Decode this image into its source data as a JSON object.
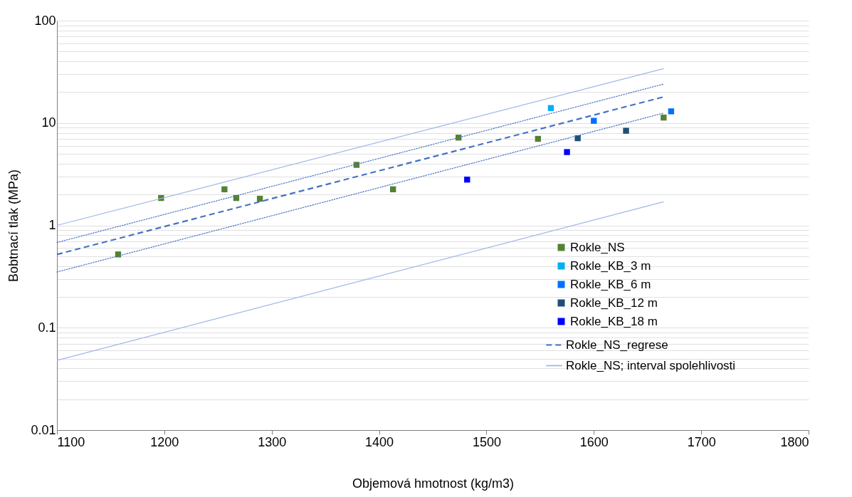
{
  "chart_data": {
    "type": "scatter",
    "xlabel": "Objemová hmotnost (kg/m3)",
    "ylabel": "Bobtnací tlak (MPa)",
    "xlim": [
      1100,
      1800
    ],
    "xticks": [
      1100,
      1200,
      1300,
      1400,
      1500,
      1600,
      1700,
      1800
    ],
    "ylim": [
      0.01,
      100
    ],
    "log": "y",
    "yticks": [
      0.01,
      {
        "value": 0.02,
        "label": null
      },
      {
        "value": 0.03,
        "label": null
      },
      {
        "value": 0.04,
        "label": null
      },
      {
        "value": 0.05,
        "label": null
      },
      {
        "value": 0.06,
        "label": null
      },
      {
        "value": 0.07,
        "label": null
      },
      {
        "value": 0.08,
        "label": null
      },
      {
        "value": 0.09,
        "label": null
      },
      0.1,
      {
        "value": 0.2,
        "label": null
      },
      {
        "value": 0.3,
        "label": null
      },
      {
        "value": 0.4,
        "label": null
      },
      {
        "value": 0.5,
        "label": null
      },
      {
        "value": 0.6,
        "label": null
      },
      {
        "value": 0.7,
        "label": null
      },
      {
        "value": 0.8,
        "label": null
      },
      {
        "value": 0.9,
        "label": null
      },
      1,
      {
        "value": 2,
        "label": null
      },
      {
        "value": 3,
        "label": null
      },
      {
        "value": 4,
        "label": null
      },
      {
        "value": 5,
        "label": null
      },
      {
        "value": 6,
        "label": null
      },
      {
        "value": 7,
        "label": null
      },
      {
        "value": 8,
        "label": null
      },
      {
        "value": 9,
        "label": null
      },
      10,
      {
        "value": 20,
        "label": null
      },
      {
        "value": 30,
        "label": null
      },
      {
        "value": 40,
        "label": null
      },
      {
        "value": 50,
        "label": null
      },
      {
        "value": 60,
        "label": null
      },
      {
        "value": 70,
        "label": null
      },
      {
        "value": 80,
        "label": null
      },
      {
        "value": 90,
        "label": null
      },
      100
    ],
    "grid": "y",
    "legend": "bottom right",
    "marker": "square",
    "series": [
      {
        "name": "Rokle_NS",
        "color": "#548235",
        "x": [
          1157,
          1197,
          1256,
          1267,
          1289,
          1379,
          1413,
          1474,
          1548,
          1665
        ],
        "values": [
          0.52,
          1.85,
          2.25,
          1.85,
          1.82,
          3.9,
          2.25,
          7.2,
          7.0,
          11.3
        ]
      },
      {
        "name": "Rokle_KB_3 m",
        "color": "#00b0f0",
        "x": [
          1560
        ],
        "values": [
          14
        ]
      },
      {
        "name": "Rokle_KB_6 m",
        "color": "#0070ff",
        "x": [
          1600,
          1672
        ],
        "values": [
          10.5,
          13
        ]
      },
      {
        "name": "Rokle_KB_12 m",
        "color": "#1f4e79",
        "x": [
          1585,
          1630
        ],
        "values": [
          7.1,
          8.4
        ]
      },
      {
        "name": "Rokle_KB_18 m",
        "color": "#0000ff",
        "x": [
          1482,
          1575
        ],
        "values": [
          2.8,
          5.2
        ]
      },
      {
        "name": "Rokle_NS_regrese",
        "type": "line",
        "marker": "none",
        "line_style": "dashed",
        "color": "#4472c4",
        "x": [
          1100,
          1665
        ],
        "values": [
          0.52,
          18
        ]
      },
      {
        "name": "Rokle_NS; interval spolehlivosti",
        "type": "line",
        "marker": "none",
        "line_style": "solid",
        "color": "#9fb8e6",
        "x": [
          1100,
          1665
        ],
        "values": [
          1.0,
          34
        ]
      },
      {
        "type": "line",
        "marker": "none",
        "line_style": "solid",
        "color": "#9fb8e6",
        "x": [
          1100,
          1665
        ],
        "values": [
          0.048,
          1.7
        ]
      },
      {
        "type": "line",
        "marker": "none",
        "line_style": "dotted",
        "color": "#4472c4",
        "x": [
          1100,
          1665
        ],
        "values": [
          0.68,
          24
        ]
      },
      {
        "type": "line",
        "marker": "none",
        "line_style": "dotted",
        "color": "#4472c4",
        "x": [
          1100,
          1665
        ],
        "values": [
          0.35,
          12.5
        ]
      }
    ]
  }
}
